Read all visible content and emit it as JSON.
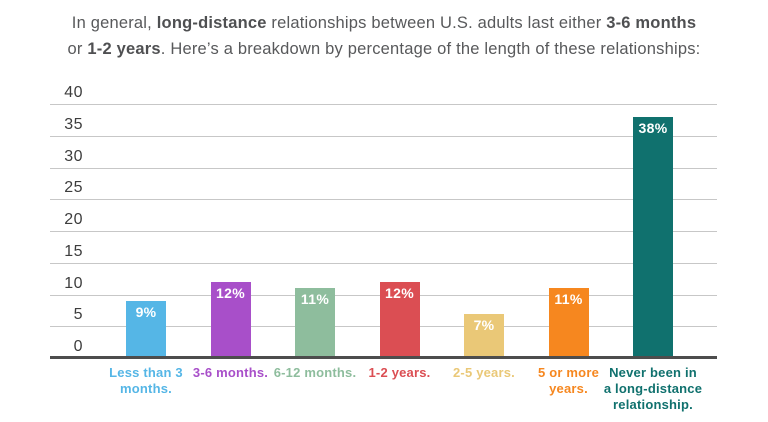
{
  "title": {
    "text": "In general, long-distance relationships between U.S. adults last either 3-6 months\nor 1-2 years. Here’s a breakdown by percentage of the length of these relationships:",
    "segments": [
      {
        "text": "In general, ",
        "bold": false
      },
      {
        "text": "long-distance",
        "bold": true
      },
      {
        "text": " relationships between U.S. adults last either ",
        "bold": false
      },
      {
        "text": "3-6 months",
        "bold": true
      },
      {
        "text": "\nor ",
        "bold": false
      },
      {
        "text": "1-2 years",
        "bold": true
      },
      {
        "text": ". Here’s a breakdown by percentage of the length of these relationships:",
        "bold": false
      }
    ]
  },
  "chart_data": {
    "type": "bar",
    "title": "In general, long-distance relationships between U.S. adults last either 3-6 months or 1-2 years. Here’s a breakdown by percentage of the length of these relationships:",
    "categories": [
      "Less than 3\nmonths.",
      "3-6 months.",
      "6-12 months.",
      "1-2 years.",
      "2-5 years.",
      "5 or more\nyears.",
      "Never been in\na long-distance\nrelationship."
    ],
    "values": [
      9,
      12,
      11,
      12,
      7,
      11,
      38
    ],
    "value_labels": [
      "9%",
      "12%",
      "11%",
      "12%",
      "7%",
      "11%",
      "38%"
    ],
    "bar_colors": [
      "#55B6E6",
      "#A84FC9",
      "#8EBD9D",
      "#DB4E53",
      "#EAC877",
      "#F6871F",
      "#10716E"
    ],
    "xlabel": "",
    "ylabel": "",
    "ylim": [
      0,
      40
    ],
    "yticks": [
      0,
      5,
      10,
      15,
      20,
      25,
      30,
      35,
      40
    ],
    "grid": true,
    "legend": "none",
    "colors": {
      "axis": "#4d4d4d",
      "gridline": "#c7c7c7",
      "tick_text": "#3d3d3d",
      "title_text": "#58595b",
      "value_label_text": "#ffffff"
    }
  }
}
